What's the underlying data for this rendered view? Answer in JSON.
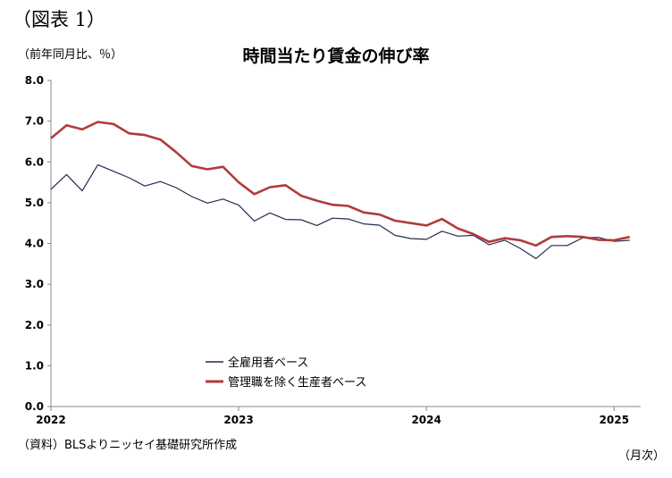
{
  "figure_label": "（図表 1）",
  "unit_label": "（前年同月比、％）",
  "source_note": "（資料）BLSよりニッセイ基礎研究所作成",
  "x_unit": "（月次）",
  "colors": {
    "all_employees": "#1f2d4f",
    "non_supervisory": "#b23b3b",
    "axis": "#888888"
  },
  "chart_data": {
    "type": "line",
    "title": "時間当たり賃金の伸び率",
    "ylim": [
      0,
      8
    ],
    "yticks": [
      "8.0",
      "7.0",
      "6.0",
      "5.0",
      "4.0",
      "3.0",
      "2.0",
      "1.0",
      "0.0"
    ],
    "xticks": [
      "2022",
      "2023",
      "2024",
      "2025"
    ],
    "xrange": [
      "2022-01",
      "2025-01"
    ],
    "grid": false,
    "legend": "bottom-left",
    "series": [
      {
        "name": "全雇用者ベース",
        "values": [
          5.33,
          5.69,
          5.29,
          5.93,
          5.77,
          5.61,
          5.41,
          5.52,
          5.37,
          5.15,
          4.99,
          5.09,
          4.94,
          4.55,
          4.75,
          4.59,
          4.58,
          4.44,
          4.62,
          4.6,
          4.48,
          4.45,
          4.2,
          4.12,
          4.1,
          4.3,
          4.18,
          4.2,
          3.97,
          4.08,
          3.88,
          3.63,
          3.95,
          3.95,
          4.14,
          4.15,
          4.05,
          4.08
        ]
      },
      {
        "name": "管理職を除く生産者ベース",
        "values": [
          6.58,
          6.9,
          6.8,
          6.98,
          6.93,
          6.7,
          6.66,
          6.55,
          6.24,
          5.9,
          5.82,
          5.88,
          5.5,
          5.21,
          5.38,
          5.43,
          5.17,
          5.05,
          4.95,
          4.92,
          4.76,
          4.71,
          4.56,
          4.5,
          4.44,
          4.6,
          4.37,
          4.23,
          4.04,
          4.13,
          4.08,
          3.95,
          4.16,
          4.18,
          4.16,
          4.09,
          4.08,
          4.16
        ]
      }
    ]
  }
}
